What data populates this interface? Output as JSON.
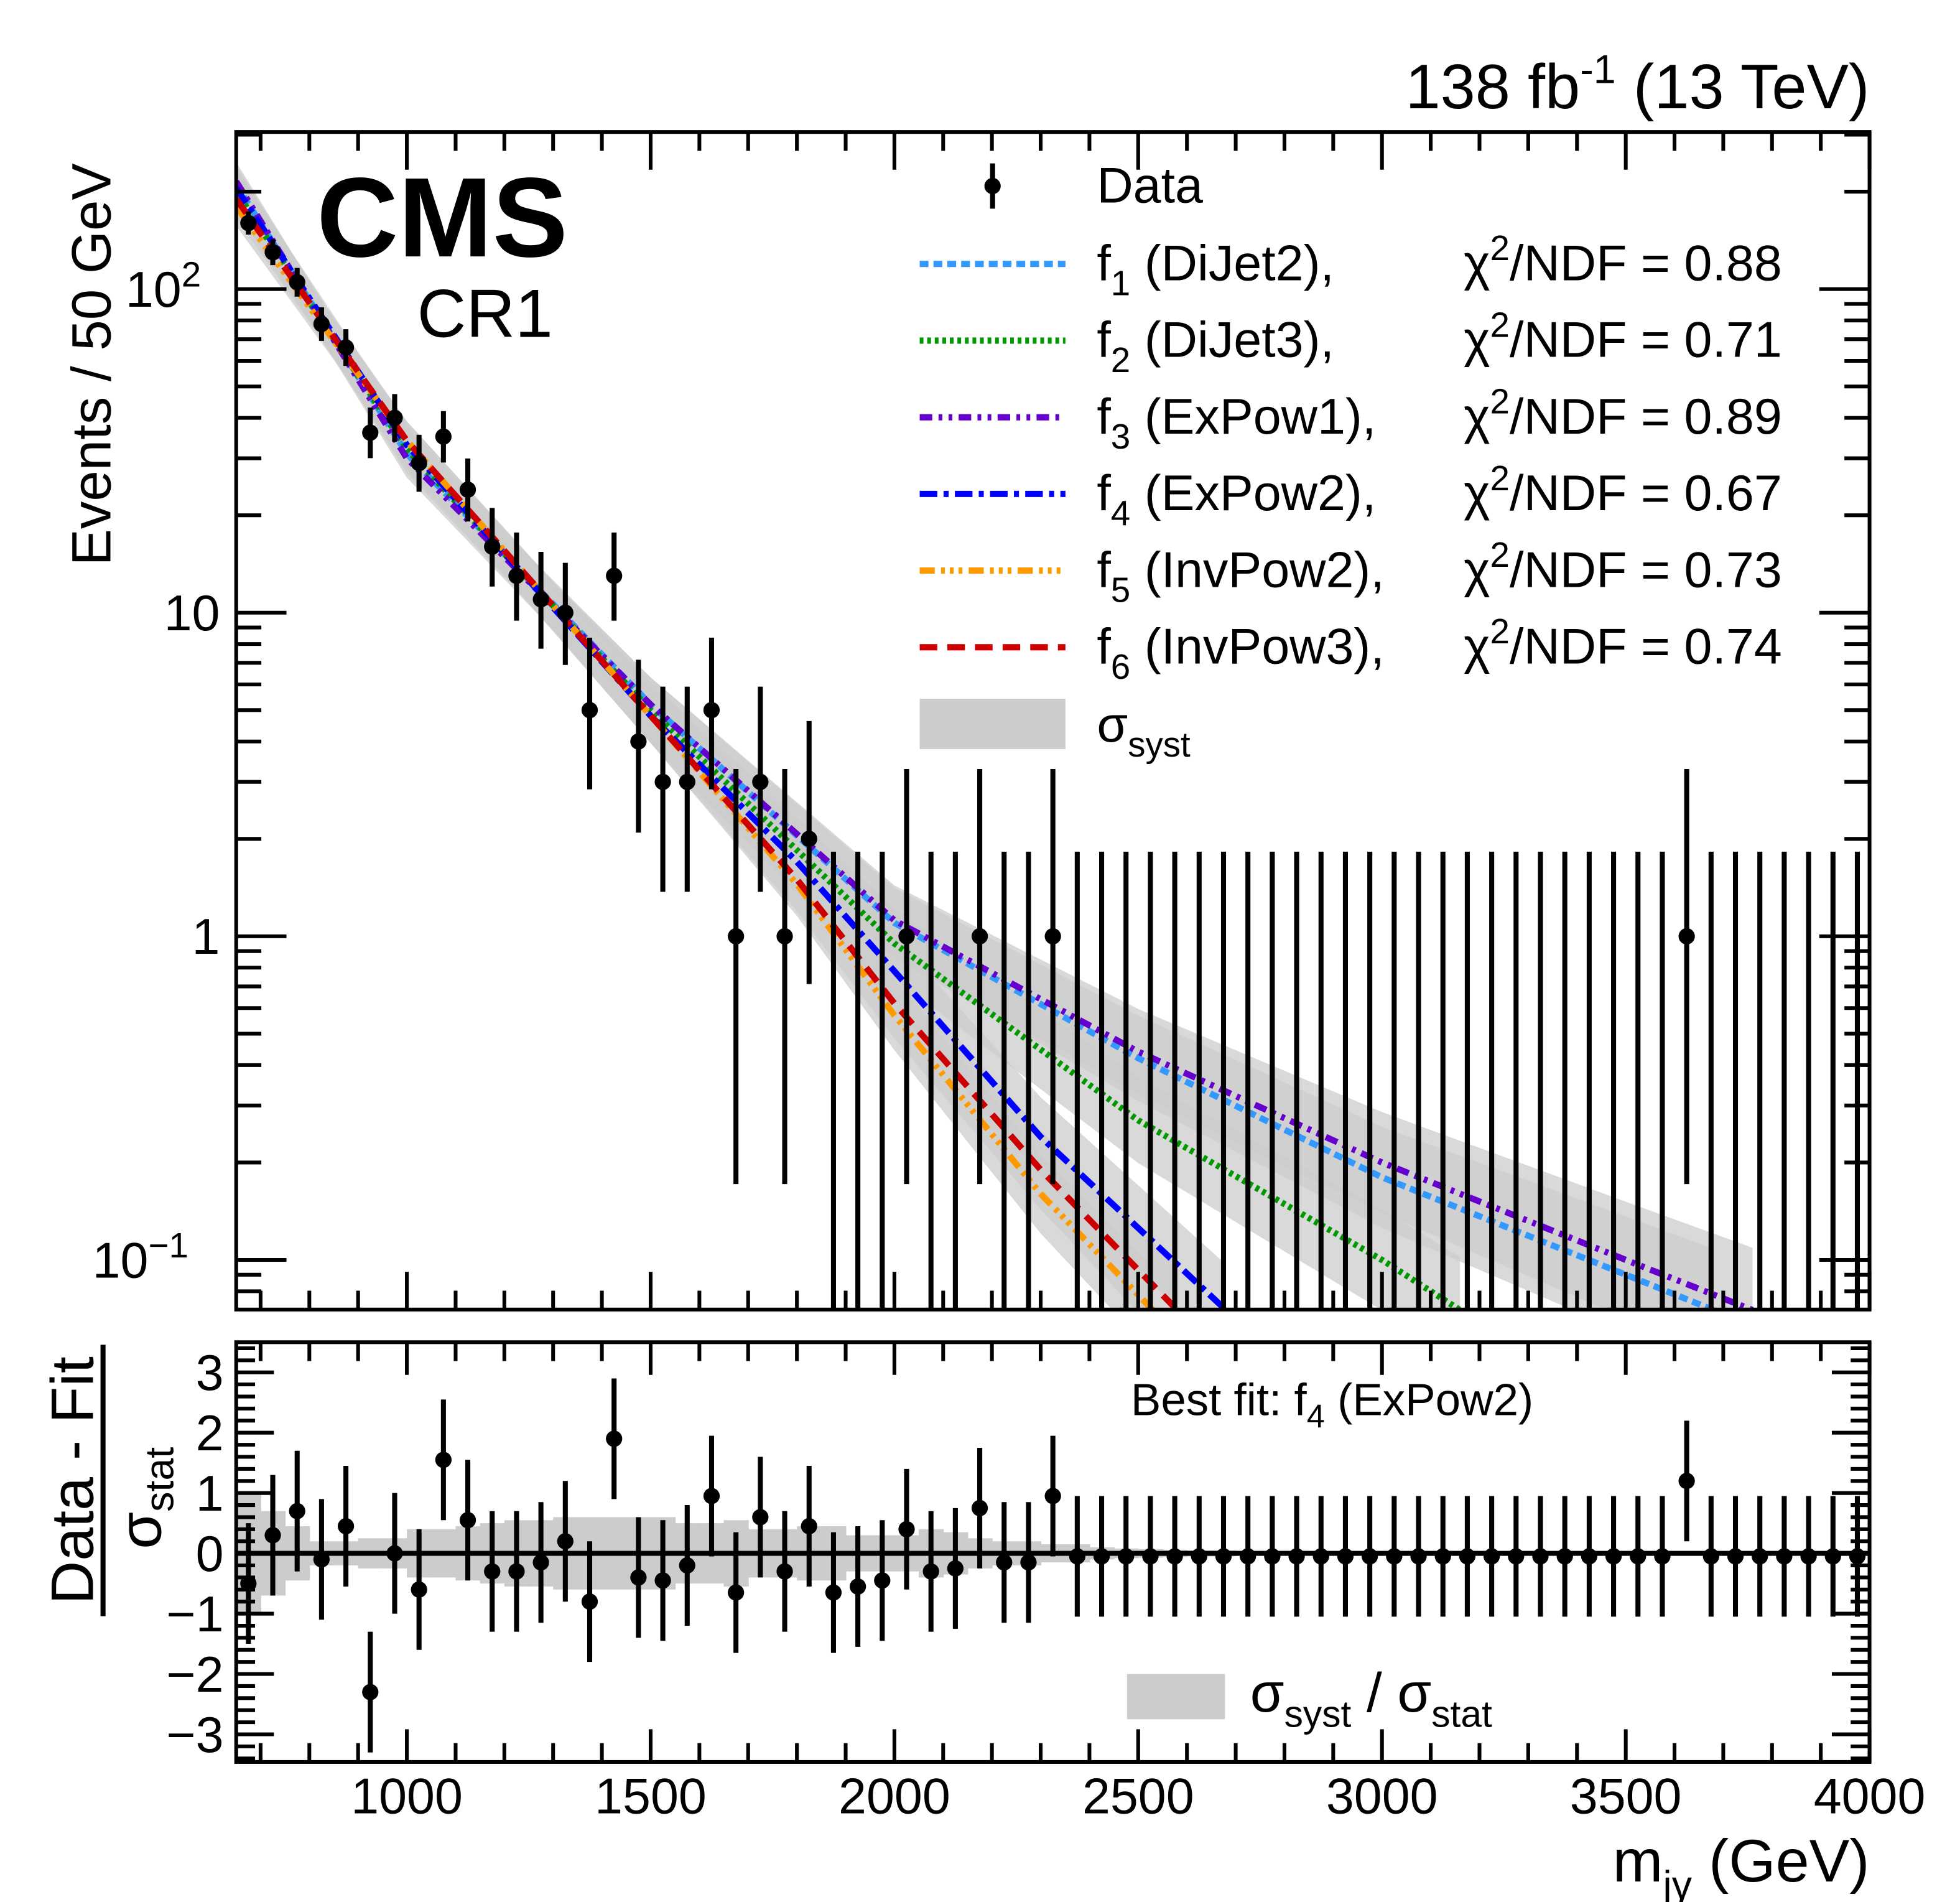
{
  "header": {
    "lumi_text": "138 fb",
    "lumi_sup": "-1",
    "energy_text": " (13 TeV)"
  },
  "labels": {
    "experiment": "CMS",
    "region": "CR1",
    "best_fit_prefix": "Best fit: f",
    "best_fit_sub": "4",
    "best_fit_name": " (ExPow2)"
  },
  "chart_data": [
    {
      "type": "scatter",
      "yscale": "log",
      "ylabel": "Events / 50 GeV",
      "xlim": [
        650,
        4000
      ],
      "ylim": [
        0.07,
        305
      ],
      "ytick_labels": [
        {
          "base": "10",
          "exp": "2",
          "value": 100
        },
        {
          "base": "10",
          "exp": "",
          "value": 10
        },
        {
          "base": "1",
          "exp": "",
          "value": 1
        },
        {
          "base": "10",
          "exp": "−1",
          "value": 0.1
        }
      ],
      "data": {
        "name": "Data",
        "bin_width": 50,
        "x": [
          675,
          725,
          775,
          825,
          875,
          925,
          975,
          1025,
          1075,
          1125,
          1175,
          1225,
          1275,
          1325,
          1375,
          1425,
          1475,
          1525,
          1575,
          1625,
          1675,
          1725,
          1775,
          1825,
          1875,
          1925,
          1975,
          2025,
          2075,
          2125,
          2175,
          2225,
          2275,
          2325,
          2375,
          2425,
          2475,
          2525,
          2575,
          2625,
          2675,
          2725,
          2775,
          2825,
          2875,
          2925,
          2975,
          3025,
          3075,
          3125,
          3175,
          3225,
          3275,
          3325,
          3375,
          3425,
          3475,
          3525,
          3575,
          3625,
          3675,
          3725,
          3775,
          3825,
          3875,
          3925,
          3975
        ],
        "y": [
          160,
          130,
          105,
          78,
          66,
          36,
          40,
          29,
          35,
          24,
          16,
          13,
          11,
          10,
          5,
          13,
          4,
          3,
          3,
          5,
          1,
          3,
          1,
          2,
          0,
          0,
          0,
          1,
          0,
          0,
          1,
          0,
          0,
          1,
          0,
          0,
          0,
          0,
          0,
          0,
          0,
          0,
          0,
          0,
          0,
          0,
          0,
          0,
          0,
          0,
          0,
          0,
          0,
          0,
          0,
          0,
          0,
          0,
          0,
          1,
          0,
          0,
          0,
          0,
          0,
          0,
          0
        ]
      },
      "fits": [
        {
          "label": "f",
          "sub": "1",
          "name": " (DiJet2),",
          "chi2_ndf": "0.88",
          "color": "#3399ff",
          "x": [
            650,
            1000,
            1500,
            2000,
            2500,
            3000,
            3500,
            3680
          ],
          "y": [
            210,
            31,
            5.2,
            1.1,
            0.42,
            0.18,
            0.09,
            0.07
          ]
        },
        {
          "label": "f",
          "sub": "2",
          "name": " (DiJet3),",
          "chi2_ndf": "0.71",
          "color": "#009900",
          "x": [
            650,
            1000,
            1500,
            2000,
            2500,
            3000,
            3160
          ],
          "y": [
            200,
            32,
            5.0,
            0.95,
            0.27,
            0.1,
            0.07
          ]
        },
        {
          "label": "f",
          "sub": "3",
          "name": " (ExPow1),",
          "chi2_ndf": "0.89",
          "color": "#6600cc",
          "x": [
            650,
            1000,
            1500,
            2000,
            2500,
            3000,
            3500,
            3760
          ],
          "y": [
            215,
            30,
            5.2,
            1.12,
            0.44,
            0.2,
            0.1,
            0.07
          ]
        },
        {
          "label": "f",
          "sub": "4",
          "name": " (ExPow2),",
          "chi2_ndf": "0.67",
          "color": "#0000ff",
          "x": [
            650,
            1000,
            1500,
            1800,
            2000,
            2300,
            2680
          ],
          "y": [
            205,
            33,
            4.8,
            1.7,
            0.78,
            0.24,
            0.07
          ]
        },
        {
          "label": "f",
          "sub": "5",
          "name": " (InvPow2),",
          "chi2_ndf": "0.73",
          "color": "#ff9900",
          "x": [
            650,
            1000,
            1500,
            1800,
            2000,
            2300,
            2530
          ],
          "y": [
            180,
            34,
            4.8,
            1.45,
            0.57,
            0.16,
            0.07
          ]
        },
        {
          "label": "f",
          "sub": "6",
          "name": " (InvPow3),",
          "chi2_ndf": "0.74",
          "color": "#cc0000",
          "x": [
            650,
            1000,
            1500,
            1800,
            2000,
            2300,
            2580
          ],
          "y": [
            190,
            34,
            4.8,
            1.5,
            0.62,
            0.19,
            0.07
          ]
        }
      ],
      "chi2_prefix": "χ",
      "chi2_sup": "2",
      "chi2_mid": "/NDF = ",
      "legend": {
        "data_label": "Data",
        "syst_label": "σ",
        "syst_sub": "syst",
        "placement": "top-right"
      },
      "band_color": "#cccccc"
    },
    {
      "type": "scatter",
      "xlabel": "m",
      "xlabel_sub": "jγ",
      "xlabel_unit": " (GeV)",
      "ylabel_num": "Data - Fit",
      "ylabel_den": "σ",
      "ylabel_den_sub": "stat",
      "xlim": [
        650,
        4000
      ],
      "ylim": [
        -3.5,
        3.5
      ],
      "xticks": [
        1000,
        1500,
        2000,
        2500,
        3000,
        3500,
        4000
      ],
      "yticks": [
        {
          "v": 3,
          "t": "3"
        },
        {
          "v": 2,
          "t": "2"
        },
        {
          "v": 1,
          "t": "1"
        },
        {
          "v": 0,
          "t": "0"
        },
        {
          "v": -1,
          "t": "−1"
        },
        {
          "v": -2,
          "t": "−2"
        },
        {
          "v": -3,
          "t": "−3"
        }
      ],
      "pulls": [
        -0.5,
        0.3,
        0.7,
        -0.1,
        0.45,
        -2.3,
        0,
        -0.6,
        1.55,
        0.55,
        -0.3,
        -0.3,
        -0.15,
        0.2,
        -0.8,
        1.9,
        -0.4,
        -0.45,
        -0.2,
        0.95,
        -0.65,
        0.6,
        -0.3,
        0.45,
        -0.65,
        -0.55,
        -0.45,
        0.4,
        -0.3,
        -0.25,
        0.75,
        -0.15,
        -0.15,
        0.95,
        -0.05,
        -0.05,
        -0.05,
        -0.05,
        -0.05,
        -0.05,
        -0.05,
        -0.05,
        -0.05,
        -0.05,
        -0.05,
        -0.05,
        -0.05,
        -0.05,
        -0.05,
        -0.05,
        -0.05,
        -0.05,
        -0.05,
        -0.05,
        -0.05,
        -0.05,
        -0.05,
        -0.05,
        -0.05,
        1.2,
        -0.05,
        -0.05,
        -0.05,
        -0.05,
        -0.05,
        -0.05,
        -0.05
      ],
      "syst_over_stat": [
        1.0,
        0.7,
        0.45,
        0.2,
        0.2,
        0.25,
        0.25,
        0.4,
        0.4,
        0.45,
        0.5,
        0.55,
        0.55,
        0.6,
        0.6,
        0.6,
        0.6,
        0.6,
        0.5,
        0.5,
        0.55,
        0.4,
        0.4,
        0.45,
        0.45,
        0.3,
        0.3,
        0.3,
        0.4,
        0.35,
        0.25,
        0.2,
        0.2,
        0.15,
        0.15,
        0.1,
        0.08,
        0.07,
        0.06,
        0.05,
        0.05,
        0.04,
        0.04,
        0.04,
        0.03,
        0.03,
        0.03,
        0.03,
        0.03,
        0.02,
        0.02,
        0.02,
        0.02,
        0.02,
        0.02,
        0.02,
        0.02,
        0.02,
        0.02,
        0.02,
        0.02,
        0.02,
        0.02,
        0.02,
        0.02,
        0.02,
        0.02
      ],
      "legend": {
        "num": "σ",
        "num_sub": "syst",
        "sep": " / ",
        "den": "σ",
        "den_sub": "stat",
        "placement": "bottom-right"
      }
    }
  ]
}
